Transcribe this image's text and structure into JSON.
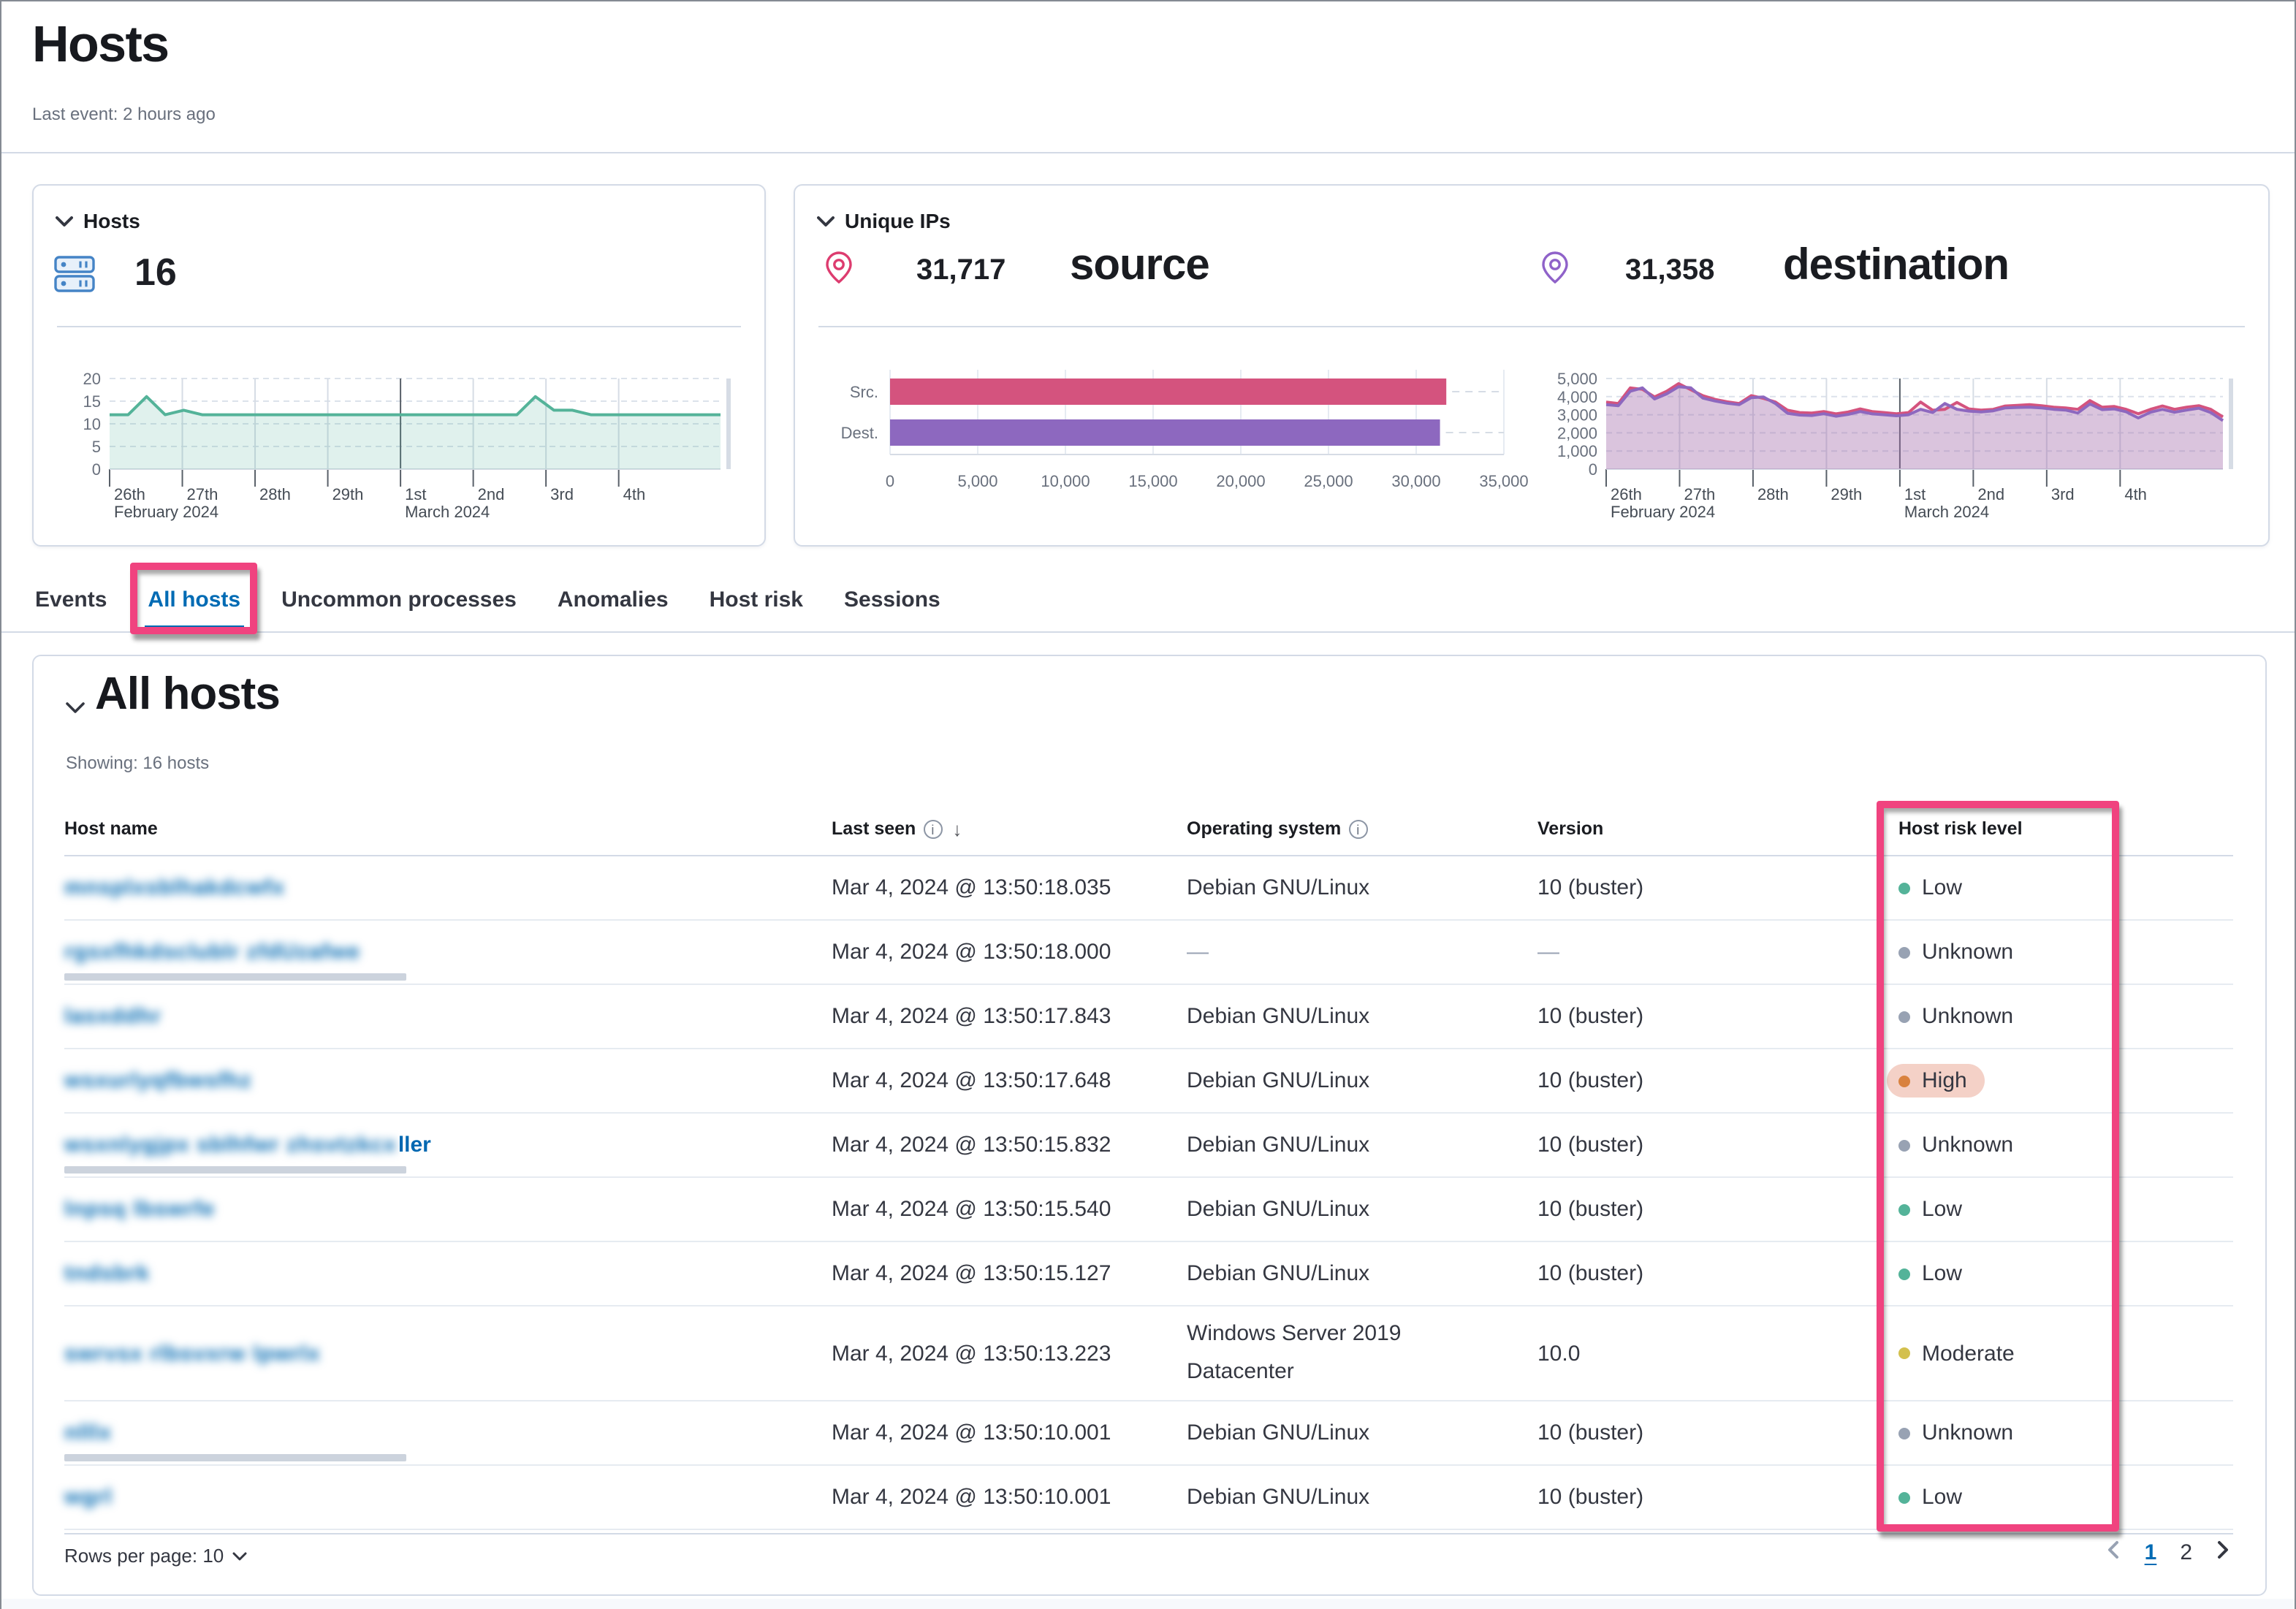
{
  "page": {
    "title": "Hosts",
    "last_event": "Last event: 2 hours ago"
  },
  "panels": {
    "hosts": {
      "title": "Hosts",
      "count": "16"
    },
    "unique_ips": {
      "title": "Unique IPs",
      "source_value": "31,717",
      "source_label": "source",
      "dest_value": "31,358",
      "dest_label": "destination"
    }
  },
  "tabs": [
    {
      "label": "Events",
      "active": false,
      "highlighted": false
    },
    {
      "label": "All hosts",
      "active": true,
      "highlighted": true
    },
    {
      "label": "Uncommon processes",
      "active": false,
      "highlighted": false
    },
    {
      "label": "Anomalies",
      "active": false,
      "highlighted": false
    },
    {
      "label": "Host risk",
      "active": false,
      "highlighted": false
    },
    {
      "label": "Sessions",
      "active": false,
      "highlighted": false
    }
  ],
  "table": {
    "section_title": "All hosts",
    "showing": "Showing: 16 hosts",
    "columns": [
      {
        "label": "Host name",
        "info": false,
        "sorted": false
      },
      {
        "label": "Last seen",
        "info": true,
        "sorted": true
      },
      {
        "label": "Operating system",
        "info": true,
        "sorted": false
      },
      {
        "label": "Version",
        "info": false,
        "sorted": false
      },
      {
        "label": "Host risk level",
        "info": false,
        "sorted": false
      }
    ],
    "rows": [
      {
        "host_redacted": "mnsplxsblhakdcwfx",
        "host_visible": "",
        "redaction_bar": false,
        "last_seen": "Mar 4, 2024 @ 13:50:18.035",
        "os": "Debian GNU/Linux",
        "version": "10 (buster)",
        "risk": "Low"
      },
      {
        "host_redacted": "rgsxfhkdsclublr zfdUzafwe",
        "host_visible": "",
        "redaction_bar": true,
        "last_seen": "Mar 4, 2024 @ 13:50:18.000",
        "os": "—",
        "version": "—",
        "risk": "Unknown"
      },
      {
        "host_redacted": "lasxddhr",
        "host_visible": "",
        "redaction_bar": false,
        "last_seen": "Mar 4, 2024 @ 13:50:17.843",
        "os": "Debian GNU/Linux",
        "version": "10 (buster)",
        "risk": "Unknown"
      },
      {
        "host_redacted": "wsxurlyqfbwsfhz",
        "host_visible": "",
        "redaction_bar": false,
        "last_seen": "Mar 4, 2024 @ 13:50:17.648",
        "os": "Debian GNU/Linux",
        "version": "10 (buster)",
        "risk": "High"
      },
      {
        "host_redacted": "wsxnlygjpx sblhfwr zhsvtzkcx",
        "host_visible": "ller",
        "redaction_bar": true,
        "last_seen": "Mar 4, 2024 @ 13:50:15.832",
        "os": "Debian GNU/Linux",
        "version": "10 (buster)",
        "risk": "Unknown"
      },
      {
        "host_redacted": "lnpsq lbswrfe",
        "host_visible": "",
        "redaction_bar": false,
        "last_seen": "Mar 4, 2024 @ 13:50:15.540",
        "os": "Debian GNU/Linux",
        "version": "10 (buster)",
        "risk": "Low"
      },
      {
        "host_redacted": "tndsbrk",
        "host_visible": "",
        "redaction_bar": false,
        "last_seen": "Mar 4, 2024 @ 13:50:15.127",
        "os": "Debian GNU/Linux",
        "version": "10 (buster)",
        "risk": "Low"
      },
      {
        "host_redacted": "swrvsx rlbsvxrw lpwrlx",
        "host_visible": "",
        "redaction_bar": false,
        "last_seen": "Mar 4, 2024 @ 13:50:13.223",
        "os": "Windows Server 2019 Datacenter",
        "version": "10.0",
        "risk": "Moderate"
      },
      {
        "host_redacted": "nlllx",
        "host_visible": "",
        "redaction_bar": true,
        "last_seen": "Mar 4, 2024 @ 13:50:10.001",
        "os": "Debian GNU/Linux",
        "version": "10 (buster)",
        "risk": "Unknown"
      },
      {
        "host_redacted": "wgrl",
        "host_visible": "",
        "redaction_bar": false,
        "last_seen": "Mar 4, 2024 @ 13:50:10.001",
        "os": "Debian GNU/Linux",
        "version": "10 (buster)",
        "risk": "Low"
      }
    ],
    "footer": {
      "rows_per_page": "Rows per page: 10",
      "pages": [
        "1",
        "2"
      ],
      "active_page": "1"
    }
  },
  "risk_levels": {
    "Low": {
      "dot": "#54b399",
      "pill": null
    },
    "Unknown": {
      "dot": "#98a2b3",
      "pill": null
    },
    "High": {
      "dot": "#d9823f",
      "pill": "#f4d1c7"
    },
    "Moderate": {
      "dot": "#d3c04e",
      "pill": null
    }
  },
  "colors": {
    "annotation_pink": "#f0437f",
    "link_blue": "#0068b1",
    "tab_active_blue": "#006bb4",
    "hosts_green": "#54b399",
    "source_pink": "#d4537e",
    "dest_purple": "#8d68bf"
  },
  "chart_data": [
    {
      "id": "hosts_over_time",
      "type": "area",
      "title": "Hosts over time",
      "ylim": [
        0,
        20
      ],
      "yticks": [
        0,
        5,
        10,
        15,
        20
      ],
      "days_total": 8.4,
      "dark_tick_index": 4,
      "xticks": [
        "26th",
        "27th",
        "28th",
        "29th",
        "1st",
        "2nd",
        "3rd",
        "4th"
      ],
      "month_labels": [
        {
          "index": 0,
          "label": "February 2024"
        },
        {
          "index": 4,
          "label": "March 2024"
        }
      ],
      "series": [
        {
          "name": "hosts",
          "color": "#54b399",
          "fill": "rgba(84,179,153,0.18)",
          "values": [
            12,
            12,
            16,
            12,
            13,
            12,
            12,
            12,
            12,
            12,
            12,
            12,
            12,
            12,
            12,
            12,
            12,
            12,
            12,
            12,
            12,
            12,
            12,
            16,
            13,
            13,
            12,
            12,
            12,
            12,
            12,
            12,
            12,
            12
          ]
        }
      ]
    },
    {
      "id": "unique_ips_bars",
      "type": "bar",
      "orientation": "horizontal",
      "categories": [
        "Src.",
        "Dest."
      ],
      "values": [
        31717,
        31358
      ],
      "colors": [
        "#d4537e",
        "#8d68bf"
      ],
      "xlim": [
        0,
        35000
      ],
      "xtick_labels": [
        "0",
        "5,000",
        "10,000",
        "15,000",
        "20,000",
        "25,000",
        "30,000",
        "35,000"
      ]
    },
    {
      "id": "unique_ips_over_time",
      "type": "area",
      "title": "Unique IPs over time",
      "ylim": [
        0,
        5000
      ],
      "yticks": [
        0,
        1000,
        2000,
        3000,
        4000,
        5000
      ],
      "days_total": 8.4,
      "dark_tick_index": 4,
      "xticks": [
        "26th",
        "27th",
        "28th",
        "29th",
        "1st",
        "2nd",
        "3rd",
        "4th"
      ],
      "month_labels": [
        {
          "index": 0,
          "label": "February 2024"
        },
        {
          "index": 4,
          "label": "March 2024"
        }
      ],
      "series": [
        {
          "name": "source",
          "color": "#d4537e",
          "fill": "rgba(212,83,126,0.10)",
          "values": [
            3700,
            3620,
            4480,
            4400,
            3980,
            4300,
            4720,
            4380,
            4050,
            3850,
            3720,
            3620,
            4060,
            3900,
            3700,
            3250,
            3120,
            3100,
            3180,
            3050,
            3150,
            3320,
            3180,
            3120,
            3060,
            3120,
            3700,
            3250,
            3300,
            3680,
            3320,
            3260,
            3300,
            3480,
            3520,
            3560,
            3500,
            3420,
            3380,
            3300,
            3780,
            3420,
            3460,
            3300,
            3060,
            3300,
            3480,
            3300,
            3420,
            3500,
            3300,
            2880
          ]
        },
        {
          "name": "destination",
          "color": "#8d68bf",
          "fill": "rgba(148,108,178,0.32)",
          "values": [
            3560,
            3500,
            4300,
            4480,
            3870,
            4150,
            4550,
            4480,
            3920,
            3760,
            3640,
            3560,
            3940,
            3980,
            3620,
            3080,
            2980,
            2960,
            3060,
            2920,
            3020,
            3180,
            3050,
            3000,
            2940,
            3000,
            3300,
            3120,
            3620,
            3300,
            3200,
            3150,
            3220,
            3380,
            3400,
            3420,
            3380,
            3300,
            3260,
            3100,
            3600,
            3280,
            3320,
            3160,
            2820,
            3140,
            3300,
            3140,
            3260,
            3360,
            3120,
            2680
          ]
        }
      ]
    }
  ]
}
